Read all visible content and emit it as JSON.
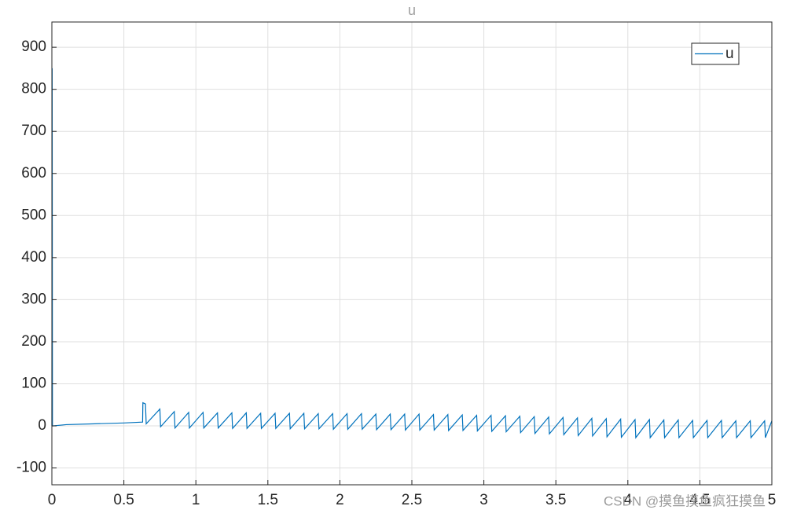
{
  "chart_data": {
    "type": "line",
    "title": "u",
    "xlim": [
      0,
      5
    ],
    "ylim": [
      -140,
      960
    ],
    "xticks": [
      0,
      0.5,
      1,
      1.5,
      2,
      2.5,
      3,
      3.5,
      4,
      4.5,
      5
    ],
    "yticks": [
      -100,
      0,
      100,
      200,
      300,
      400,
      500,
      600,
      700,
      800,
      900
    ],
    "grid": true,
    "legend": "upper-right",
    "x": [
      0,
      0.002,
      0.004,
      0.1,
      0.3,
      0.5,
      0.63,
      0.632,
      0.65,
      0.655,
      0.75,
      0.755,
      0.85,
      0.855,
      0.95,
      0.955,
      1.05,
      1.055,
      1.15,
      1.155,
      1.25,
      1.255,
      1.35,
      1.355,
      1.45,
      1.455,
      1.55,
      1.555,
      1.65,
      1.655,
      1.75,
      1.755,
      1.85,
      1.855,
      1.95,
      1.955,
      2.05,
      2.055,
      2.15,
      2.155,
      2.25,
      2.255,
      2.35,
      2.355,
      2.45,
      2.455,
      2.55,
      2.555,
      2.65,
      2.655,
      2.75,
      2.755,
      2.85,
      2.855,
      2.95,
      2.955,
      3.05,
      3.055,
      3.15,
      3.155,
      3.25,
      3.255,
      3.35,
      3.355,
      3.45,
      3.455,
      3.55,
      3.555,
      3.65,
      3.655,
      3.75,
      3.755,
      3.85,
      3.855,
      3.95,
      3.955,
      4.05,
      4.055,
      4.15,
      4.155,
      4.25,
      4.255,
      4.35,
      4.355,
      4.45,
      4.455,
      4.55,
      4.555,
      4.65,
      4.655,
      4.75,
      4.755,
      4.85,
      4.855,
      4.95,
      4.955,
      5
    ],
    "series": [
      {
        "name": "u",
        "color": "#0072bd",
        "values": [
          0,
          850,
          0,
          3,
          5,
          7,
          9,
          55,
          52,
          5,
          40,
          -2,
          34,
          -5,
          32,
          -5,
          32,
          -5,
          31,
          -5,
          31,
          -6,
          31,
          -6,
          30,
          -6,
          30,
          -6,
          30,
          -7,
          30,
          -7,
          29,
          -7,
          29,
          -8,
          29,
          -8,
          29,
          -8,
          28,
          -9,
          28,
          -9,
          28,
          -10,
          28,
          -10,
          27,
          -10,
          27,
          -11,
          26,
          -11,
          25,
          -12,
          25,
          -13,
          24,
          -14,
          23,
          -16,
          22,
          -18,
          21,
          -19,
          20,
          -21,
          19,
          -23,
          18,
          -24,
          17,
          -26,
          16,
          -27,
          15,
          -28,
          15,
          -28,
          14,
          -28,
          14,
          -28,
          13,
          -28,
          13,
          -28,
          13,
          -28,
          12,
          -28,
          12,
          -28,
          12,
          -28,
          12
        ]
      }
    ],
    "watermark": "CSDN @摸鱼摸鱼疯狂摸鱼"
  }
}
